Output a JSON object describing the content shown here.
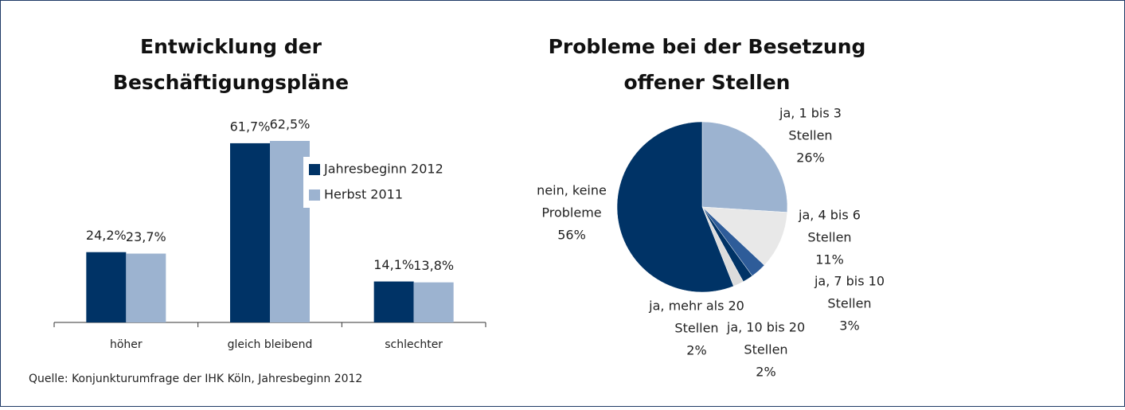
{
  "source": "Quelle: Konjunkturumfrage der IHK Köln, Jahresbeginn 2012",
  "chart_data": [
    {
      "type": "bar",
      "title": [
        "Entwicklung der",
        "Beschäftigungspläne"
      ],
      "categories": [
        "höher",
        "gleich bleibend",
        "schlechter"
      ],
      "series": [
        {
          "name": "Jahresbeginn 2012",
          "color": "#003366",
          "values": [
            24.2,
            61.7,
            14.1
          ],
          "value_labels": [
            "24,2%",
            "61,7%",
            "14,1%"
          ]
        },
        {
          "name": "Herbst 2011",
          "color": "#9cb3d0",
          "values": [
            23.7,
            62.5,
            13.8
          ],
          "value_labels": [
            "23,7%",
            "62,5%",
            "13,8%"
          ]
        }
      ]
    },
    {
      "type": "pie",
      "title": [
        "Probleme bei der Besetzung",
        "offener Stellen"
      ],
      "labels": [
        [
          "ja, 1 bis 3",
          "Stellen"
        ],
        [
          "ja, 4 bis 6",
          "Stellen"
        ],
        [
          "ja, 7 bis 10",
          "Stellen"
        ],
        [
          "ja, 10 bis 20",
          "Stellen"
        ],
        [
          "ja, mehr als 20",
          "Stellen"
        ],
        [
          "nein, keine",
          "Probleme"
        ]
      ],
      "values": [
        26,
        11,
        3,
        2,
        2,
        56
      ],
      "value_labels": [
        "26%",
        "11%",
        "3%",
        "2%",
        "2%",
        "56%"
      ],
      "colors": [
        "#9cb3d0",
        "#e8e8e8",
        "#2e5c99",
        "#003366",
        "#dcdcdc",
        "#003366"
      ]
    }
  ]
}
